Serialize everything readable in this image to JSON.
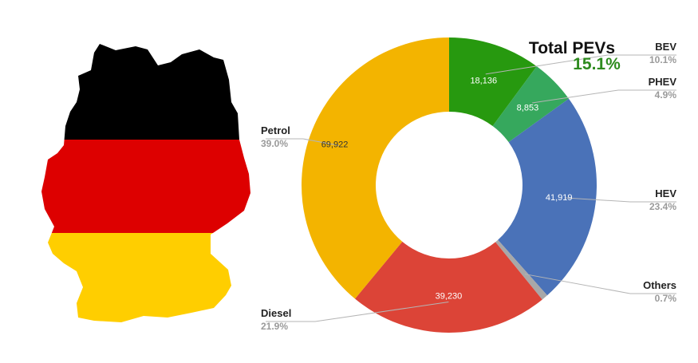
{
  "colors": {
    "flag_black": "#000000",
    "flag_red": "#dd0000",
    "flag_gold": "#ffce00",
    "leader": "#b5b5b5"
  },
  "summary": {
    "title": "Total PEVs",
    "value": "15.1%"
  },
  "chart_data": {
    "type": "pie",
    "donut": true,
    "title": "",
    "direction": "clockwise from top",
    "slices": [
      {
        "name": "BEV",
        "value": 18136,
        "value_label": "18,136",
        "percent": "10.1%",
        "color": "#27990f"
      },
      {
        "name": "PHEV",
        "value": 8853,
        "value_label": "8,853",
        "percent": "4.9%",
        "color": "#36a85d"
      },
      {
        "name": "HEV",
        "value": 41919,
        "value_label": "41,919",
        "percent": "23.4%",
        "color": "#4a72b8"
      },
      {
        "name": "Others",
        "value": 1254,
        "value_label": "",
        "percent": "0.7%",
        "color": "#a8a8a8"
      },
      {
        "name": "Diesel",
        "value": 39230,
        "value_label": "39,230",
        "percent": "21.9%",
        "color": "#dc4437"
      },
      {
        "name": "Petrol",
        "value": 69922,
        "value_label": "69,922",
        "percent": "39.0%",
        "color": "#f3b400"
      }
    ]
  }
}
